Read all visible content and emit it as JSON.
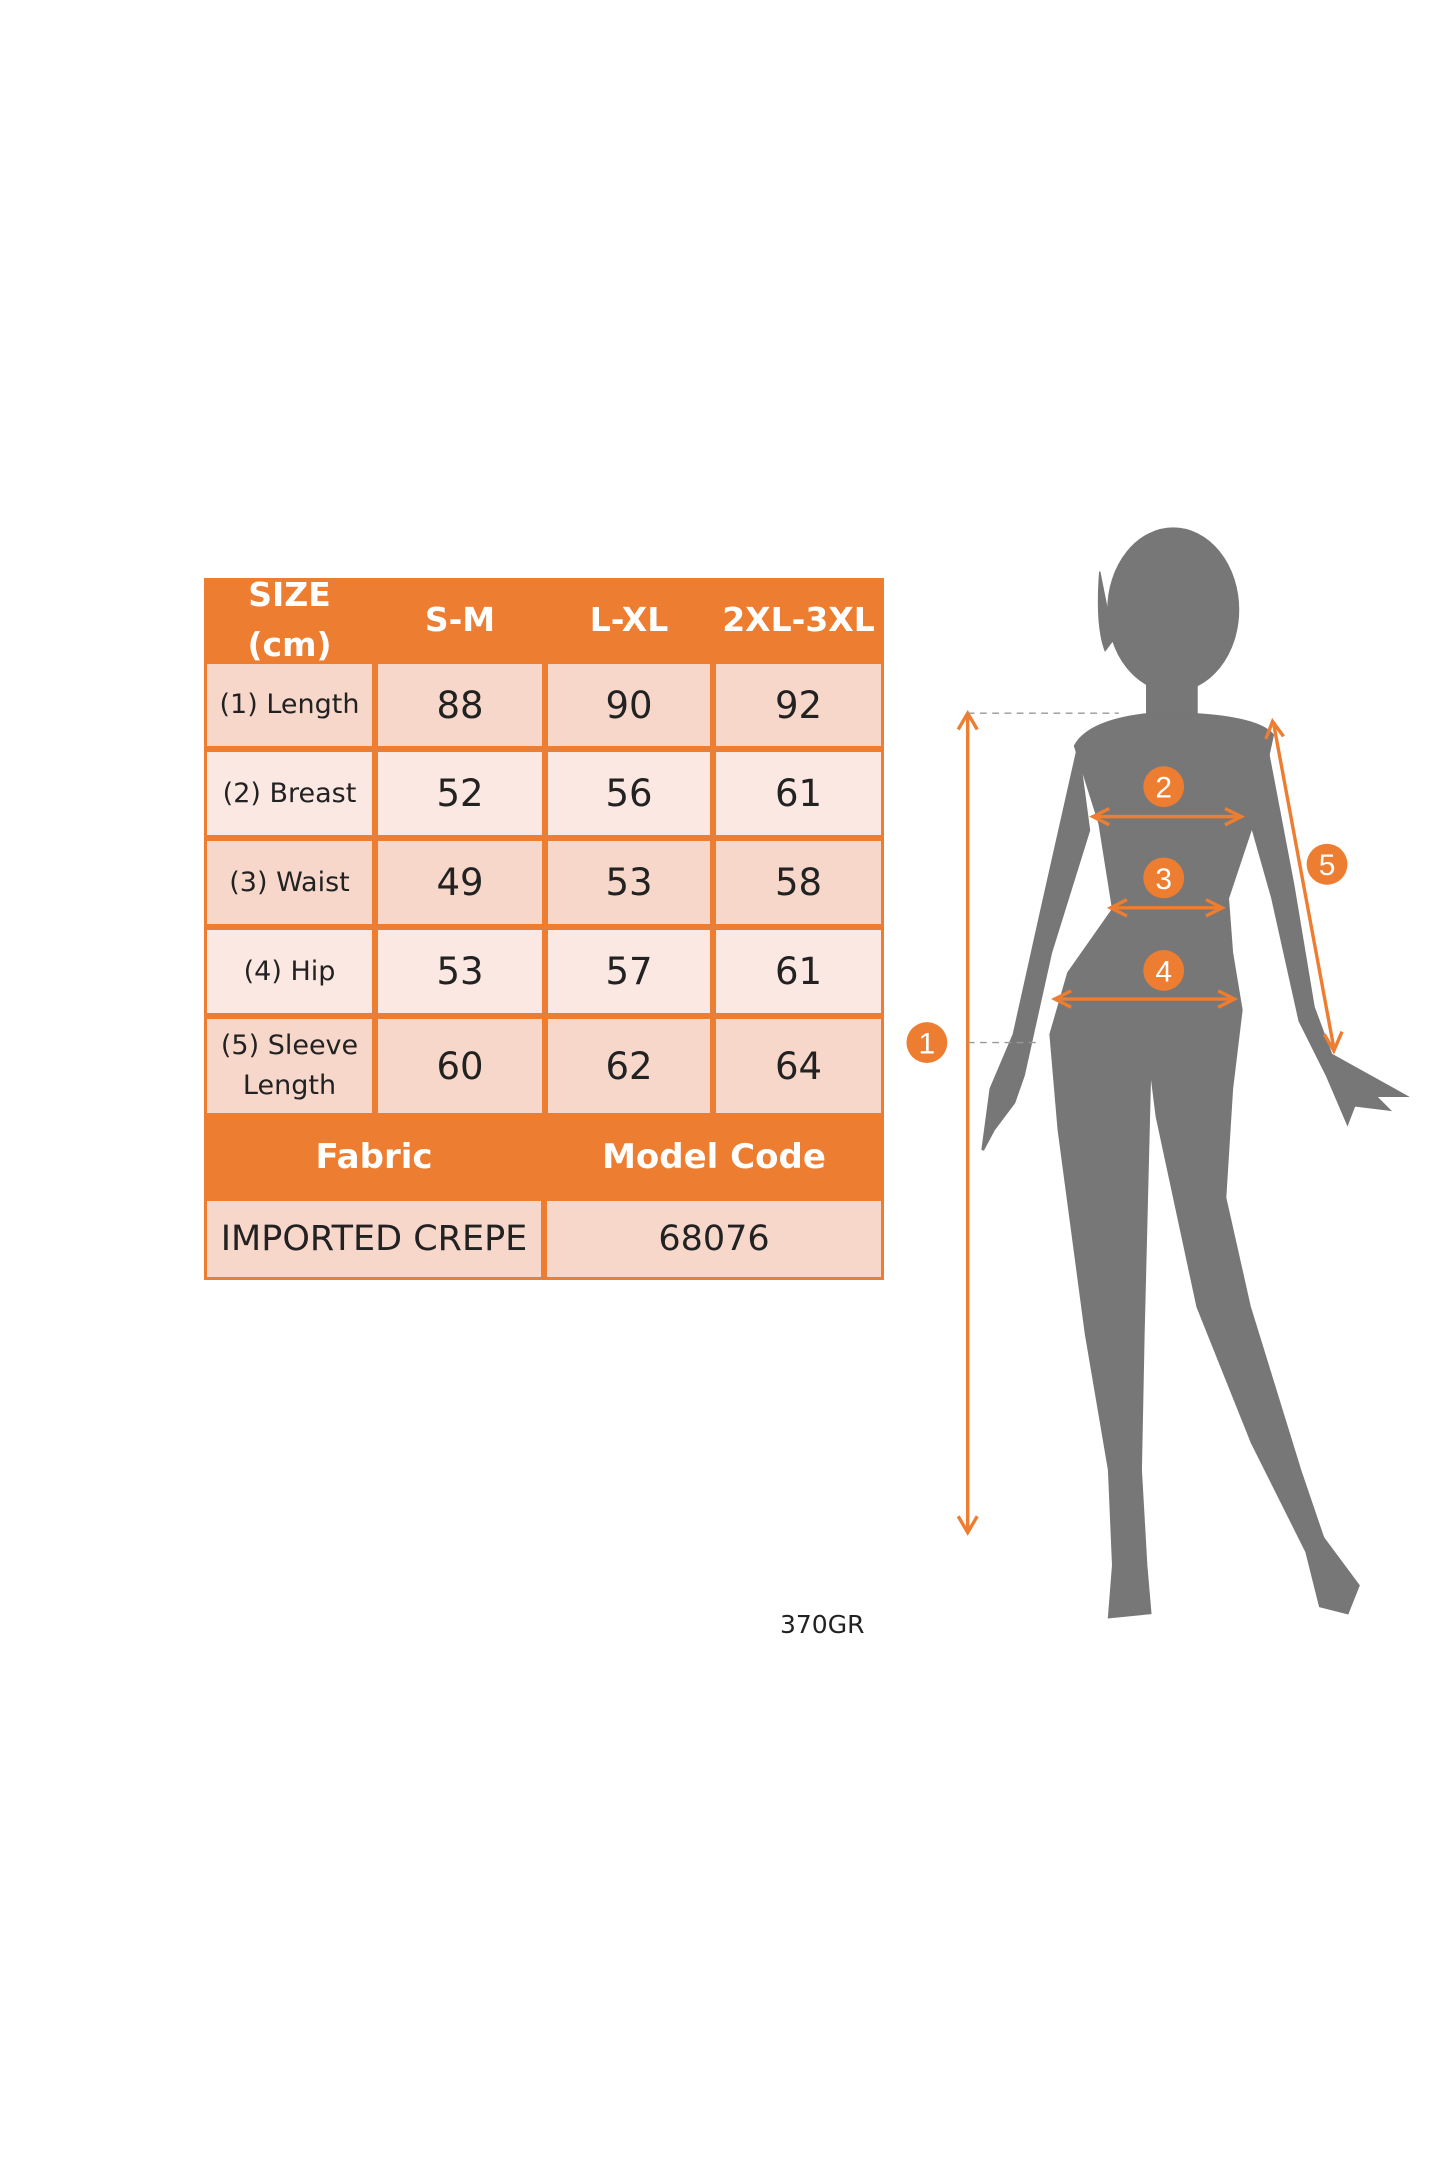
{
  "colors": {
    "accent": "#ED7D31",
    "cell_dark": "#F8D7CB",
    "cell_light": "#FBE8E2",
    "silhouette": "#777777"
  },
  "table": {
    "headers": [
      "SIZE (cm)",
      "S-M",
      "L-XL",
      "2XL-3XL"
    ],
    "rows": [
      {
        "label": "(1) Length",
        "values": [
          "88",
          "90",
          "92"
        ]
      },
      {
        "label": "(2) Breast",
        "values": [
          "52",
          "56",
          "61"
        ]
      },
      {
        "label": "(3) Waist",
        "values": [
          "49",
          "53",
          "58"
        ]
      },
      {
        "label": "(4) Hip",
        "values": [
          "53",
          "57",
          "61"
        ]
      },
      {
        "label": "(5) Sleeve Length",
        "values": [
          "60",
          "62",
          "64"
        ]
      }
    ],
    "info_headers": [
      "Fabric",
      "Model Code"
    ],
    "info_values": [
      "IMPORTED CREPE",
      "68076"
    ]
  },
  "footer_code": "370GR",
  "figure": {
    "markers": [
      "1",
      "2",
      "3",
      "4",
      "5"
    ],
    "icon": "female-silhouette-icon"
  }
}
